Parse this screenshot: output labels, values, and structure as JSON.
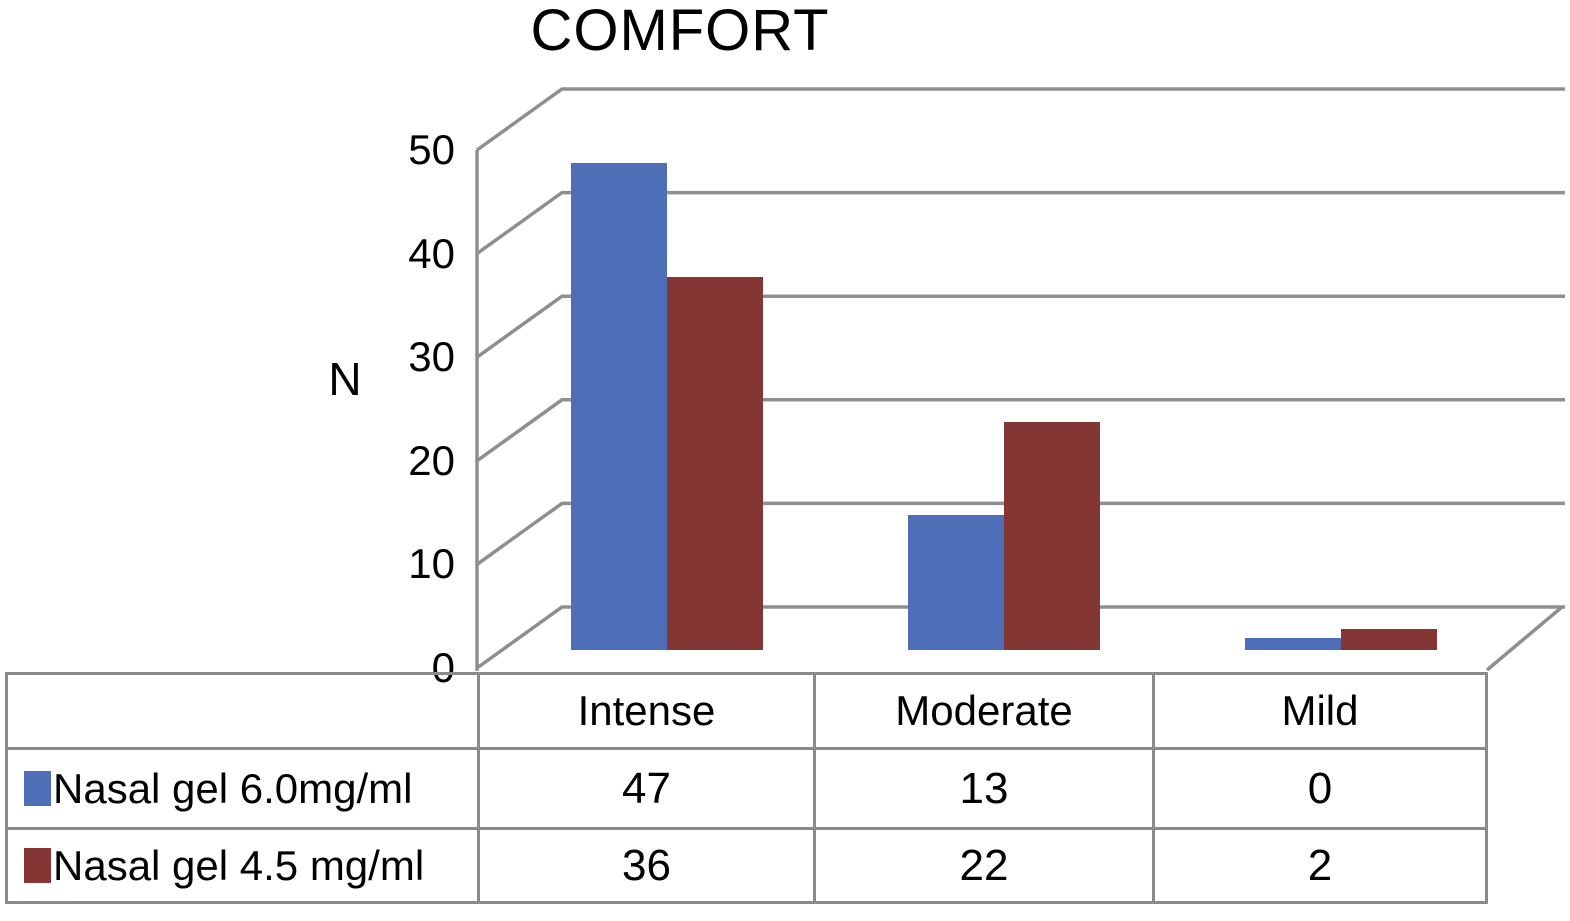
{
  "chart_data": {
    "type": "bar",
    "style": "3d-column",
    "title": "COMFORT",
    "ylabel": "N",
    "xlabel": "",
    "categories": [
      "Intense",
      "Moderate",
      "Mild"
    ],
    "series": [
      {
        "name": "Nasal gel 6.0mg/ml",
        "color": "#4E6FB8",
        "values": [
          47,
          13,
          0
        ]
      },
      {
        "name": "Nasal gel 4.5 mg/ml",
        "color": "#833634",
        "values": [
          36,
          22,
          2
        ]
      }
    ],
    "yticks": [
      0,
      10,
      20,
      30,
      40,
      50
    ],
    "ylim": [
      0,
      50
    ],
    "grid": true,
    "legend_position": "table-left-of-values"
  },
  "colors": {
    "axis_and_grid": "#8F8F8F",
    "table_border": "#8A8A8A",
    "text": "#000000",
    "background": "#FFFFFF"
  }
}
